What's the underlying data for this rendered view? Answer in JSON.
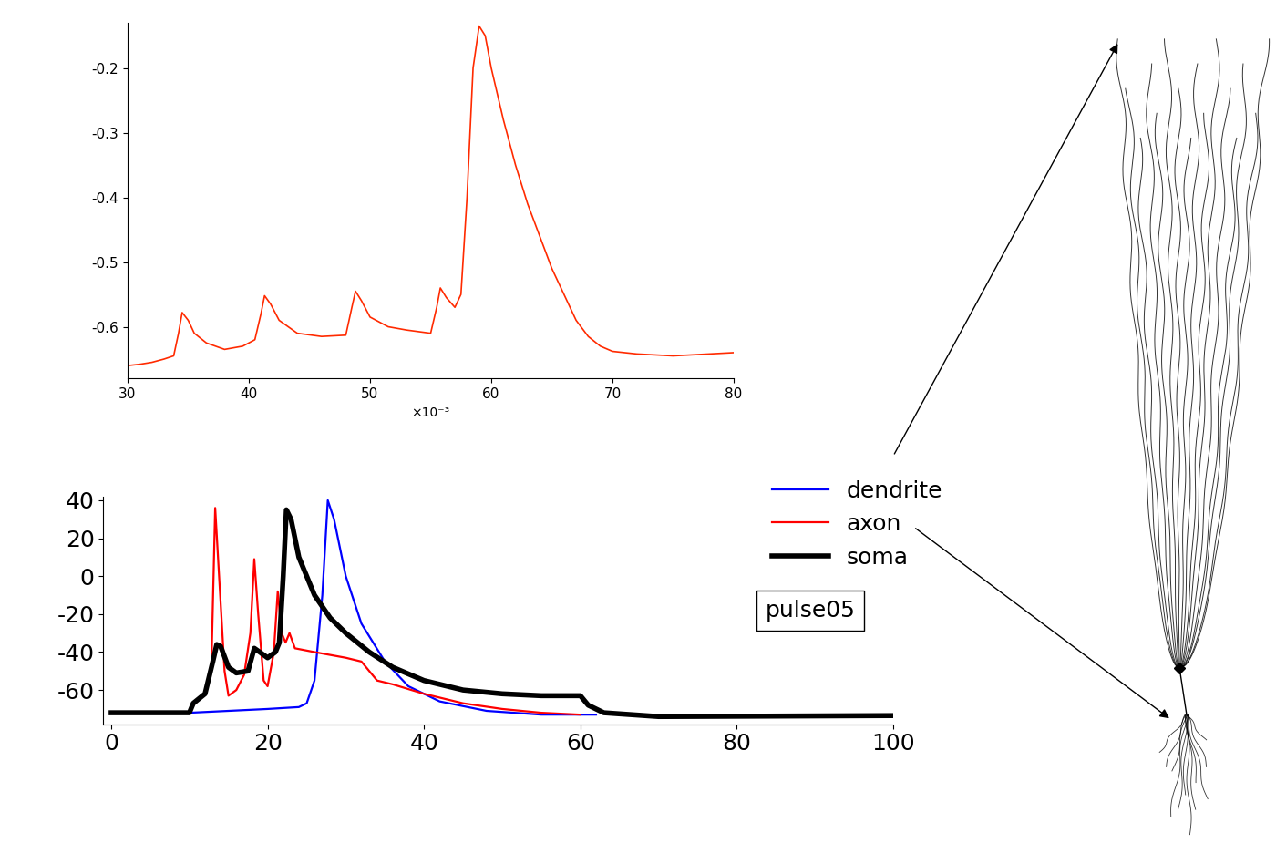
{
  "chart_data": [
    {
      "type": "line",
      "xlabel": "×10⁻³",
      "color": "#ff2a00",
      "x": [
        30,
        31,
        32,
        33,
        33.8,
        34.2,
        34.5,
        35,
        35.5,
        36.5,
        38,
        39.5,
        40.5,
        41,
        41.3,
        41.8,
        42.5,
        44,
        46,
        48,
        48.5,
        48.8,
        49.3,
        50,
        51.5,
        53,
        55,
        55.5,
        55.8,
        56.3,
        57,
        57.5,
        58,
        58.5,
        59,
        59.5,
        60,
        61,
        62,
        63,
        64,
        65,
        66,
        67,
        68,
        69,
        70,
        72,
        75,
        78,
        80
      ],
      "values": [
        -0.66,
        -0.658,
        -0.655,
        -0.65,
        -0.645,
        -0.61,
        -0.578,
        -0.59,
        -0.61,
        -0.625,
        -0.635,
        -0.63,
        -0.62,
        -0.58,
        -0.552,
        -0.565,
        -0.59,
        -0.61,
        -0.615,
        -0.613,
        -0.57,
        -0.545,
        -0.56,
        -0.585,
        -0.6,
        -0.605,
        -0.61,
        -0.57,
        -0.54,
        -0.555,
        -0.57,
        -0.55,
        -0.4,
        -0.2,
        -0.135,
        -0.15,
        -0.2,
        -0.28,
        -0.35,
        -0.41,
        -0.46,
        -0.51,
        -0.55,
        -0.59,
        -0.615,
        -0.63,
        -0.638,
        -0.642,
        -0.645,
        -0.642,
        -0.64
      ],
      "xlim": [
        30,
        80
      ],
      "xticks": [
        30,
        40,
        50,
        60,
        70,
        80
      ],
      "ylim": [
        -0.68,
        -0.13
      ],
      "yticks": [
        -0.6,
        -0.5,
        -0.4,
        -0.3,
        -0.2
      ]
    },
    {
      "type": "line",
      "annotations": [
        "pulse05"
      ],
      "legend": "upper right",
      "xlim": [
        -1,
        100
      ],
      "xticks": [
        0,
        20,
        40,
        60,
        80,
        100
      ],
      "ylim": [
        -78,
        42
      ],
      "yticks": [
        -60,
        -40,
        -20,
        0,
        20,
        40
      ],
      "series": [
        {
          "name": "dendrite",
          "color": "#0000ff",
          "x": [
            0,
            10,
            15,
            20,
            24,
            25,
            26,
            27,
            27.7,
            28.5,
            30,
            32,
            35,
            38,
            42,
            48,
            55,
            62
          ],
          "values": [
            -72,
            -72,
            -71,
            -70,
            -69,
            -67,
            -55,
            -10,
            40,
            30,
            0,
            -25,
            -45,
            -58,
            -66,
            -71,
            -73,
            -73
          ]
        },
        {
          "name": "axon",
          "color": "#ff0000",
          "x": [
            0,
            10,
            10.5,
            12,
            12.8,
            13.3,
            13.8,
            14.5,
            15,
            16,
            17,
            17.8,
            18.3,
            18.8,
            19.5,
            20,
            20.8,
            21.3,
            21.8,
            22.3,
            22.8,
            23.5,
            26,
            30,
            32,
            33,
            34,
            36,
            40,
            45,
            50,
            55,
            60
          ],
          "values": [
            -72,
            -72,
            -68,
            -62,
            -50,
            36,
            0,
            -50,
            -63,
            -60,
            -52,
            -30,
            9,
            -20,
            -55,
            -58,
            -40,
            -8,
            -30,
            -35,
            -30,
            -38,
            -40,
            -43,
            -45,
            -50,
            -55,
            -57,
            -62,
            -67,
            -70,
            -72,
            -73
          ]
        },
        {
          "name": "soma",
          "color": "#000000",
          "x": [
            0,
            10,
            10.5,
            12,
            13,
            13.5,
            14,
            15,
            16,
            17.5,
            18.3,
            19,
            20,
            21,
            21.5,
            22,
            22.4,
            23,
            24,
            26,
            28,
            30,
            33,
            36,
            40,
            45,
            50,
            55,
            60,
            61,
            63,
            70,
            100
          ],
          "values": [
            -72,
            -72,
            -67,
            -62,
            -45,
            -36,
            -37,
            -48,
            -51,
            -50,
            -38,
            -40,
            -43,
            -40,
            -35,
            0,
            35,
            30,
            10,
            -10,
            -22,
            -30,
            -40,
            -48,
            -55,
            -60,
            -62,
            -63,
            -63,
            -68,
            -72,
            -74,
            -73.5
          ]
        }
      ]
    }
  ]
}
